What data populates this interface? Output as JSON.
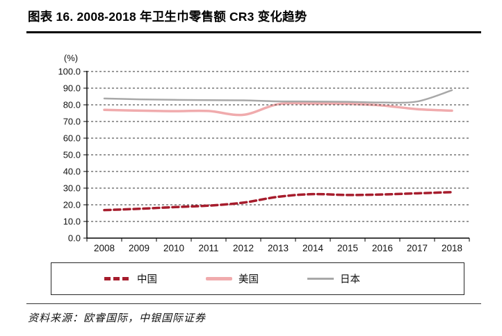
{
  "title": "图表 16. 2008-2018 年卫生巾零售额 CR3 变化趋势",
  "source_note": "资料来源：欧睿国际，中银国际证券",
  "chart_data": {
    "type": "line",
    "title": "2008-2018 年卫生巾零售额 CR3 变化趋势",
    "unit_label": "(%)",
    "categories": [
      "2008",
      "2009",
      "2010",
      "2011",
      "2012",
      "2013",
      "2014",
      "2015",
      "2016",
      "2017",
      "2018"
    ],
    "ylim": [
      0,
      100
    ],
    "y_step": 10,
    "y_tick_labels": [
      "0.0",
      "10.0",
      "20.0",
      "30.0",
      "40.0",
      "50.0",
      "60.0",
      "70.0",
      "80.0",
      "90.0",
      "100.0"
    ],
    "grid": "horizontal-dashed",
    "legend_position": "bottom",
    "axis_color": "#000000",
    "gridline_color": "#303030",
    "series": [
      {
        "name": "中国",
        "color": "#a61c2c",
        "line_style": "dashed",
        "width": 3.5,
        "layer": "above-grid",
        "values": [
          16.8,
          17.6,
          18.6,
          19.5,
          21.3,
          24.8,
          26.4,
          25.9,
          26.2,
          26.9,
          27.6
        ]
      },
      {
        "name": "美国",
        "color": "#f0abad",
        "line_style": "solid",
        "width": 3.5,
        "layer": "below-grid",
        "values": [
          77.0,
          76.5,
          76.2,
          76.3,
          74.0,
          80.4,
          80.8,
          80.6,
          79.6,
          77.4,
          76.5
        ]
      },
      {
        "name": "日本",
        "color": "#a8a8a8",
        "line_style": "solid",
        "width": 2.5,
        "layer": "below-grid",
        "values": [
          83.8,
          83.3,
          83.0,
          82.8,
          82.7,
          82.1,
          82.0,
          81.8,
          81.4,
          82.0,
          88.8
        ]
      }
    ]
  }
}
